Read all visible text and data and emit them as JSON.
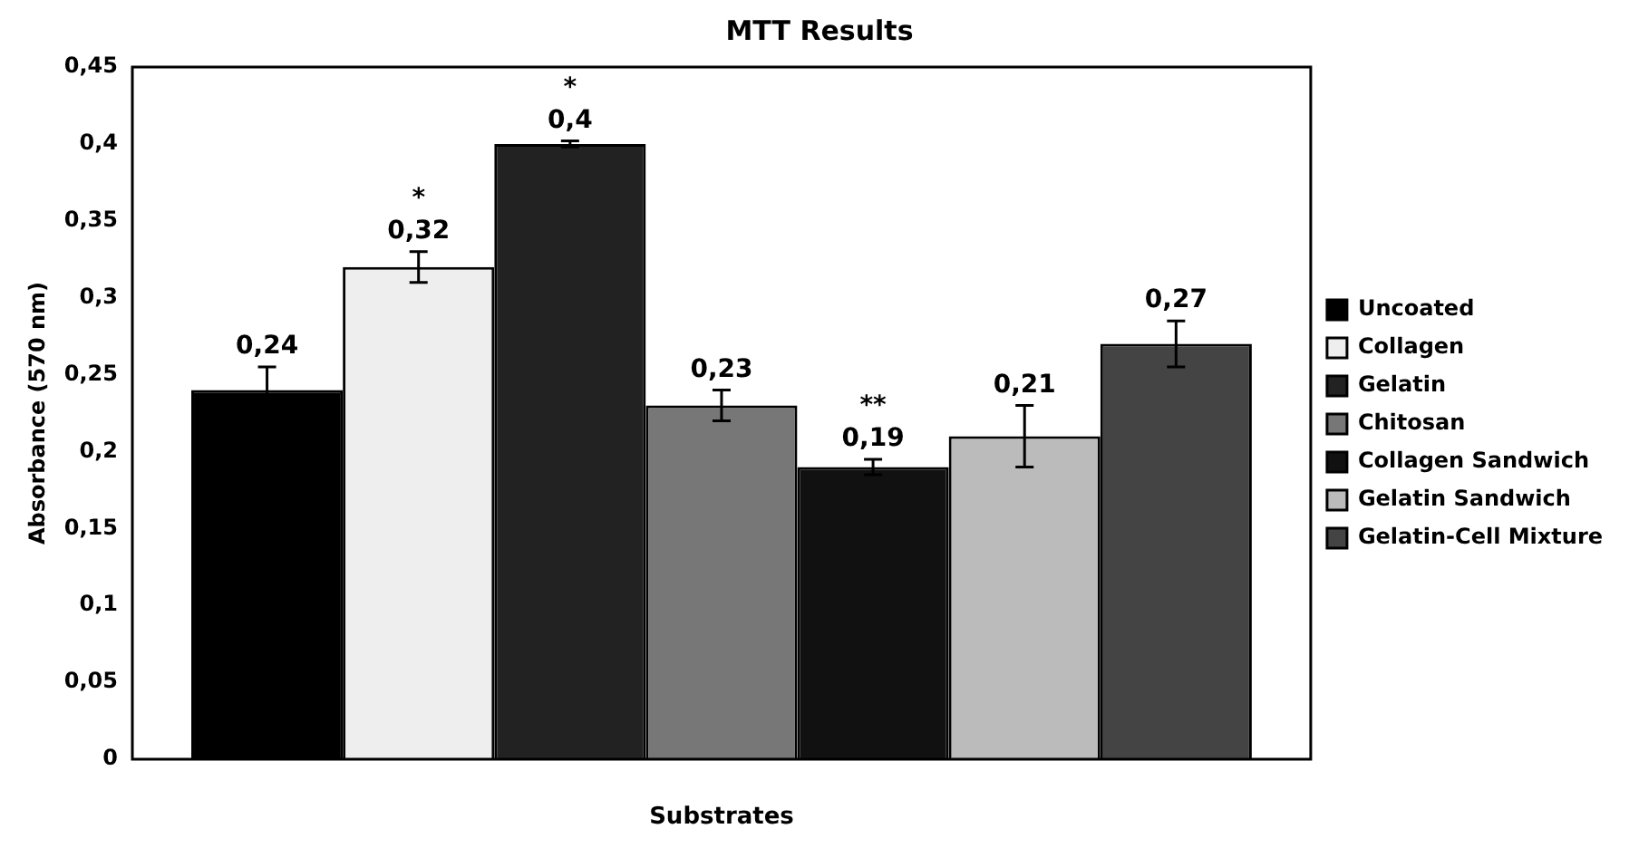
{
  "chart_data": {
    "type": "bar",
    "title": "MTT Results",
    "xlabel": "Substrates",
    "ylabel": "Absorbance (570 nm)",
    "categories": [
      null
    ],
    "series": [
      {
        "name": "Uncoated",
        "color": "#000000",
        "values": [
          0.24
        ],
        "errors": [
          0.015
        ],
        "value_labels": [
          "0,24"
        ]
      },
      {
        "name": "Collagen",
        "color": "#eeeeee",
        "values": [
          0.32
        ],
        "errors": [
          0.01
        ],
        "value_labels": [
          "*\n0,32"
        ]
      },
      {
        "name": "Gelatin",
        "color": "#222222",
        "values": [
          0.4
        ],
        "errors": [
          0.002
        ],
        "value_labels": [
          "*\n0,4"
        ]
      },
      {
        "name": "Chitosan",
        "color": "#777777",
        "values": [
          0.23
        ],
        "errors": [
          0.01
        ],
        "value_labels": [
          "0,23"
        ]
      },
      {
        "name": "Collagen Sandwich",
        "color": "#111111",
        "values": [
          0.19
        ],
        "errors": [
          0.005
        ],
        "value_labels": [
          "**\n0,19"
        ]
      },
      {
        "name": "Gelatin Sandwich",
        "color": "#bbbbbb",
        "values": [
          0.21
        ],
        "errors": [
          0.02
        ],
        "value_labels": [
          "0,21"
        ]
      },
      {
        "name": "Gelatin-Cell Mixture",
        "color": "#444444",
        "values": [
          0.27
        ],
        "errors": [
          0.015
        ],
        "value_labels": [
          "0,27"
        ]
      }
    ],
    "ylim": [
      0,
      0.45
    ],
    "yticks": [
      0,
      {
        "value": 0.05,
        "label": "0,05"
      },
      {
        "value": 0.1,
        "label": "0,1"
      },
      {
        "value": 0.15,
        "label": "0,15"
      },
      {
        "value": 0.2,
        "label": "0,2"
      },
      {
        "value": 0.25,
        "label": "0,25"
      },
      {
        "value": 0.3,
        "label": "0,3"
      },
      {
        "value": 0.35,
        "label": "0,35"
      },
      {
        "value": 0.4,
        "label": "0,4"
      },
      {
        "value": 0.45,
        "label": "0,45"
      }
    ],
    "grid": false,
    "legend": "right"
  }
}
